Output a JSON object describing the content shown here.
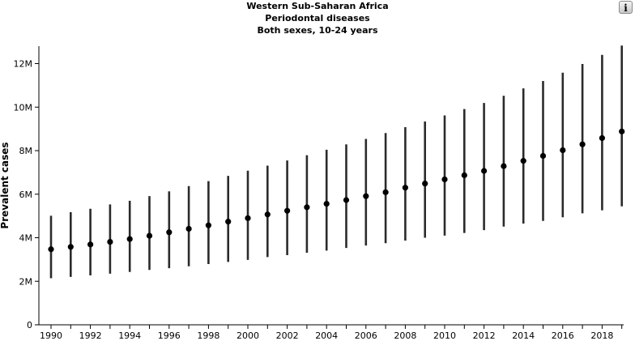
{
  "chart_data": {
    "type": "scatter",
    "title": [
      "Western Sub-Saharan Africa",
      "Periodontal diseases",
      "Both sexes, 10-24 years"
    ],
    "xlabel": "",
    "ylabel": "Prevalent cases",
    "ylim": [
      0,
      12800000
    ],
    "yticks": [
      0,
      2000000,
      4000000,
      6000000,
      8000000,
      10000000,
      12000000
    ],
    "ytick_labels": [
      "0",
      "2M",
      "4M",
      "6M",
      "8M",
      "10M",
      "12M"
    ],
    "xticks": [
      1990,
      1992,
      1994,
      1996,
      1998,
      2000,
      2002,
      2004,
      2006,
      2008,
      2010,
      2012,
      2014,
      2016,
      2018
    ],
    "grid": false,
    "error_bars": true,
    "x": [
      1990,
      1991,
      1992,
      1993,
      1994,
      1995,
      1996,
      1997,
      1998,
      1999,
      2000,
      2001,
      2002,
      2003,
      2004,
      2005,
      2006,
      2007,
      2008,
      2009,
      2010,
      2011,
      2012,
      2013,
      2014,
      2015,
      2016,
      2017,
      2018,
      2019
    ],
    "values": [
      3470000,
      3580000,
      3690000,
      3810000,
      3940000,
      4090000,
      4250000,
      4410000,
      4570000,
      4740000,
      4900000,
      5070000,
      5240000,
      5400000,
      5560000,
      5730000,
      5910000,
      6090000,
      6300000,
      6490000,
      6680000,
      6870000,
      7070000,
      7290000,
      7530000,
      7760000,
      8020000,
      8290000,
      8580000,
      8880000
    ],
    "lower": [
      2140000,
      2200000,
      2270000,
      2350000,
      2430000,
      2520000,
      2600000,
      2690000,
      2790000,
      2890000,
      2980000,
      3110000,
      3200000,
      3310000,
      3410000,
      3530000,
      3640000,
      3750000,
      3870000,
      4000000,
      4100000,
      4220000,
      4350000,
      4510000,
      4650000,
      4770000,
      4940000,
      5120000,
      5260000,
      5440000
    ],
    "upper": [
      5010000,
      5170000,
      5330000,
      5530000,
      5700000,
      5910000,
      6130000,
      6370000,
      6600000,
      6840000,
      7080000,
      7310000,
      7550000,
      7790000,
      8040000,
      8290000,
      8540000,
      8810000,
      9080000,
      9340000,
      9620000,
      9910000,
      10190000,
      10520000,
      10860000,
      11200000,
      11580000,
      11980000,
      12400000,
      12830000
    ]
  },
  "info_button": {
    "label": "i",
    "icon": "info-icon"
  }
}
